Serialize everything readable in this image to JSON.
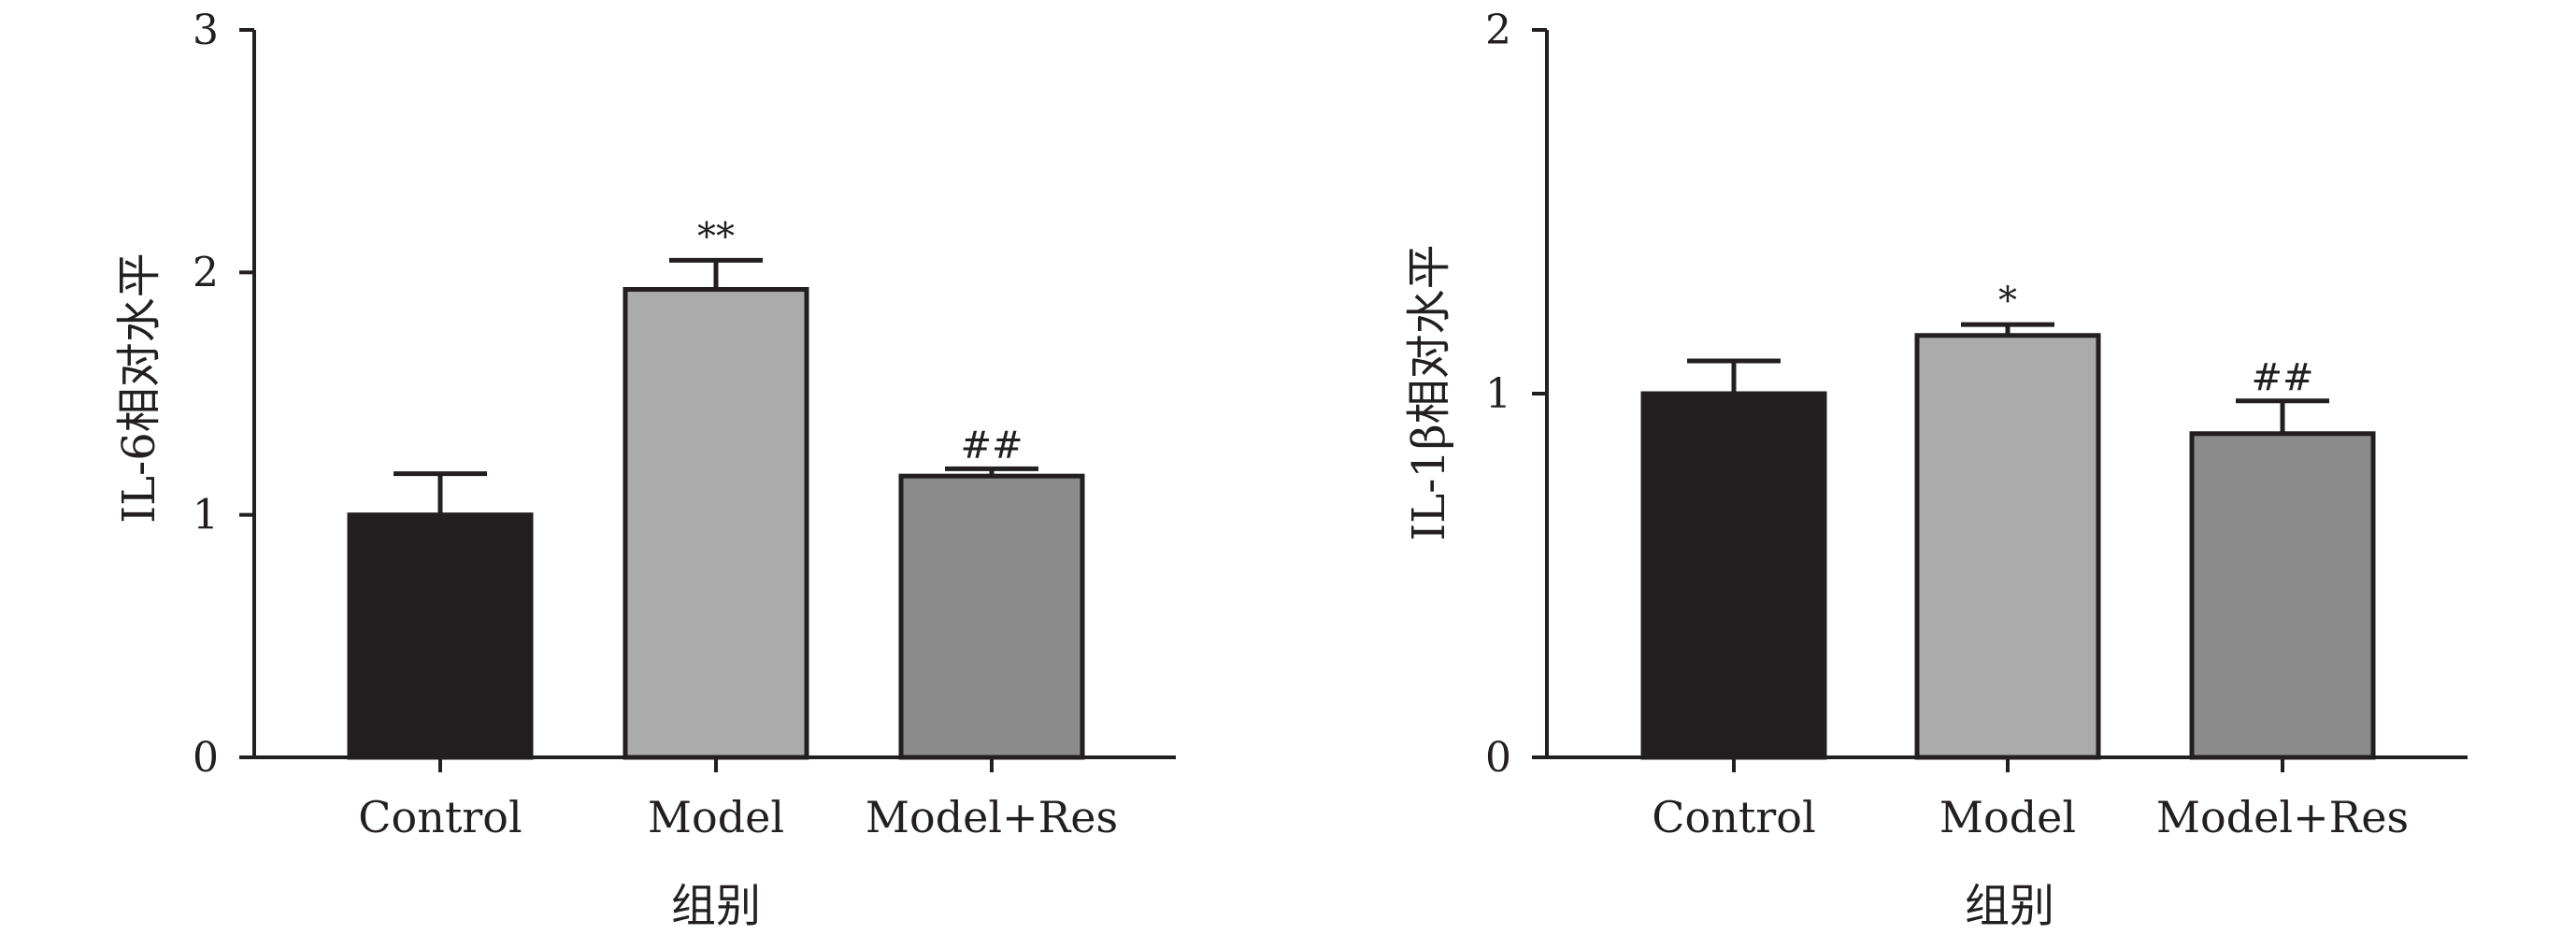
{
  "chart_data": [
    {
      "type": "bar",
      "ylabel": "IL-6相对水平",
      "xlabel": "组别",
      "categories": [
        "Control",
        "Model",
        "Model+Res"
      ],
      "values": [
        1.0,
        1.93,
        1.16
      ],
      "errors": [
        0.17,
        0.12,
        0.03
      ],
      "annotations": [
        "",
        "**",
        "##"
      ],
      "bar_colors": [
        "#231f20",
        "#acabab",
        "#8c8b8b"
      ],
      "ylim": [
        0,
        3
      ],
      "yticks": [
        "0",
        "1",
        "2",
        "3"
      ],
      "grid": false,
      "legend": "none"
    },
    {
      "type": "bar",
      "ylabel": "IL-1β相对水平",
      "xlabel": "组别",
      "categories": [
        "Control",
        "Model",
        "Model+Res"
      ],
      "values": [
        1.0,
        1.16,
        0.89
      ],
      "errors": [
        0.09,
        0.03,
        0.09
      ],
      "annotations": [
        "",
        "*",
        "##"
      ],
      "bar_colors": [
        "#231f20",
        "#acabab",
        "#8c8b8b"
      ],
      "ylim": [
        0,
        2
      ],
      "yticks": [
        "0",
        "1",
        "2"
      ],
      "grid": false,
      "legend": "none"
    }
  ]
}
